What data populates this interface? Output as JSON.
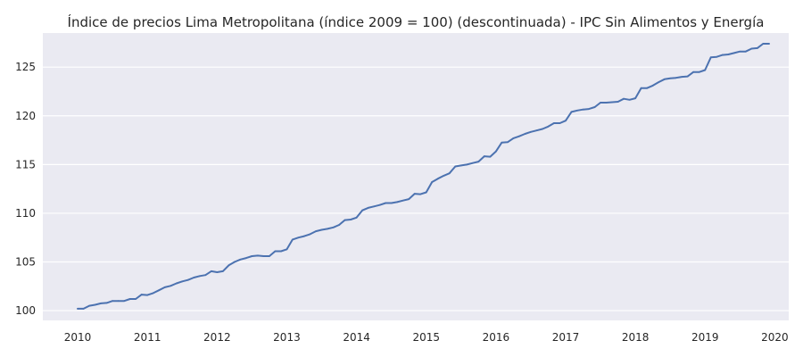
{
  "chart_data": {
    "type": "line",
    "title": "Índice de precios Lima Metropolitana (índice 2009 = 100) (descontinuada) - IPC Sin Alimentos y Energía",
    "xlabel": "",
    "ylabel": "",
    "xlim": [
      2009.5,
      2020.2
    ],
    "ylim": [
      99.0,
      128.5
    ],
    "x_ticks": [
      2010,
      2011,
      2012,
      2013,
      2014,
      2015,
      2016,
      2017,
      2018,
      2019,
      2020
    ],
    "x_tick_labels": [
      "2010",
      "2011",
      "2012",
      "2013",
      "2014",
      "2015",
      "2016",
      "2017",
      "2018",
      "2019",
      "2020"
    ],
    "y_ticks": [
      100,
      105,
      110,
      115,
      120,
      125
    ],
    "y_tick_labels": [
      "100",
      "105",
      "110",
      "115",
      "120",
      "125"
    ],
    "grid": true,
    "series": [
      {
        "color": "#4c72b0",
        "x": [
          2010.0,
          2010.083,
          2010.167,
          2010.25,
          2010.333,
          2010.417,
          2010.5,
          2010.583,
          2010.667,
          2010.75,
          2010.833,
          2010.917,
          2011.0,
          2011.083,
          2011.167,
          2011.25,
          2011.333,
          2011.417,
          2011.5,
          2011.583,
          2011.667,
          2011.75,
          2011.833,
          2011.917,
          2012.0,
          2012.083,
          2012.167,
          2012.25,
          2012.333,
          2012.417,
          2012.5,
          2012.583,
          2012.667,
          2012.75,
          2012.833,
          2012.917,
          2013.0,
          2013.083,
          2013.167,
          2013.25,
          2013.333,
          2013.417,
          2013.5,
          2013.583,
          2013.667,
          2013.75,
          2013.833,
          2013.917,
          2014.0,
          2014.083,
          2014.167,
          2014.25,
          2014.333,
          2014.417,
          2014.5,
          2014.583,
          2014.667,
          2014.75,
          2014.833,
          2014.917,
          2015.0,
          2015.083,
          2015.167,
          2015.25,
          2015.333,
          2015.417,
          2015.5,
          2015.583,
          2015.667,
          2015.75,
          2015.833,
          2015.917,
          2016.0,
          2016.083,
          2016.167,
          2016.25,
          2016.333,
          2016.417,
          2016.5,
          2016.583,
          2016.667,
          2016.75,
          2016.833,
          2016.917,
          2017.0,
          2017.083,
          2017.167,
          2017.25,
          2017.333,
          2017.417,
          2017.5,
          2017.583,
          2017.667,
          2017.75,
          2017.833,
          2017.917,
          2018.0,
          2018.083,
          2018.167,
          2018.25,
          2018.333,
          2018.417,
          2018.5,
          2018.583,
          2018.667,
          2018.75,
          2018.833,
          2018.917,
          2019.0,
          2019.083,
          2019.167,
          2019.25,
          2019.333,
          2019.417,
          2019.5,
          2019.583,
          2019.667,
          2019.75,
          2019.833,
          2019.917
        ],
        "y": [
          100.2,
          100.2,
          100.5,
          100.6,
          100.75,
          100.8,
          101.0,
          101.0,
          101.0,
          101.2,
          101.2,
          101.65,
          101.6,
          101.8,
          102.1,
          102.4,
          102.55,
          102.8,
          103.0,
          103.15,
          103.4,
          103.55,
          103.65,
          104.05,
          103.95,
          104.05,
          104.65,
          105.0,
          105.25,
          105.4,
          105.6,
          105.65,
          105.6,
          105.6,
          106.1,
          106.1,
          106.3,
          107.3,
          107.5,
          107.65,
          107.85,
          108.15,
          108.3,
          108.4,
          108.55,
          108.8,
          109.3,
          109.35,
          109.55,
          110.3,
          110.55,
          110.7,
          110.85,
          111.05,
          111.05,
          111.15,
          111.3,
          111.45,
          112.0,
          111.95,
          112.15,
          113.2,
          113.55,
          113.85,
          114.1,
          114.8,
          114.9,
          115.0,
          115.15,
          115.3,
          115.85,
          115.8,
          116.35,
          117.25,
          117.3,
          117.7,
          117.9,
          118.15,
          118.35,
          118.5,
          118.65,
          118.9,
          119.25,
          119.25,
          119.5,
          120.4,
          120.55,
          120.65,
          120.7,
          120.9,
          121.35,
          121.35,
          121.4,
          121.45,
          121.75,
          121.65,
          121.8,
          122.85,
          122.85,
          123.1,
          123.45,
          123.75,
          123.85,
          123.9,
          124.0,
          124.05,
          124.5,
          124.5,
          124.7,
          126.0,
          126.05,
          126.25,
          126.3,
          126.45,
          126.6,
          126.6,
          126.9,
          126.95,
          127.4,
          127.4
        ]
      }
    ]
  }
}
